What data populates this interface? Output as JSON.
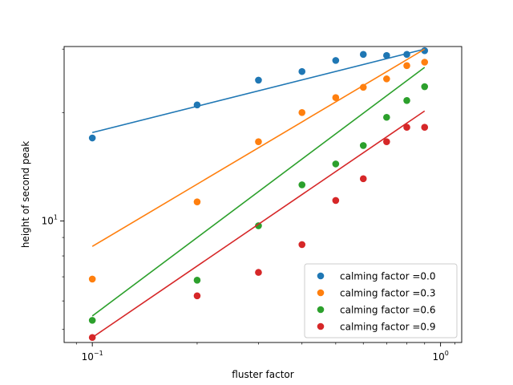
{
  "chart_data": {
    "type": "scatter",
    "xlabel": "fluster factor",
    "ylabel": "height of second peak",
    "xscale": "log",
    "yscale": "log",
    "xlim": [
      0.083,
      1.15
    ],
    "ylim": [
      4.6,
      30.5
    ],
    "x_ticks": [
      {
        "value": 0.1,
        "label": "10",
        "exp": "−1"
      },
      {
        "value": 1.0,
        "label": "10",
        "exp": "0"
      }
    ],
    "y_ticks": [
      {
        "value": 10,
        "label": "10",
        "exp": "1"
      }
    ],
    "grid": false,
    "legend_position": "lower right",
    "x": [
      0.1,
      0.2,
      0.3,
      0.4,
      0.5,
      0.6,
      0.7,
      0.8,
      0.9
    ],
    "series": [
      {
        "name": "calming factor =0.0",
        "color": "#1f77b4",
        "values": [
          17.0,
          21.0,
          24.6,
          26.0,
          27.9,
          29.0,
          28.8,
          29.0,
          29.7
        ],
        "fit": [
          17.6,
          30.0
        ]
      },
      {
        "name": "calming factor =0.3",
        "color": "#ff7f0e",
        "values": [
          6.9,
          11.3,
          16.6,
          20.0,
          22.0,
          23.5,
          24.8,
          27.0,
          27.6
        ],
        "fit": [
          8.5,
          30.0
        ]
      },
      {
        "name": "calming factor =0.6",
        "color": "#2ca02c",
        "values": [
          5.3,
          6.85,
          9.7,
          12.6,
          14.4,
          16.2,
          19.4,
          21.6,
          23.6
        ],
        "fit": [
          5.45,
          26.7
        ]
      },
      {
        "name": "calming factor =0.9",
        "color": "#d62728",
        "values": [
          4.75,
          6.2,
          7.2,
          8.6,
          11.4,
          13.1,
          16.6,
          18.2,
          18.2
        ],
        "fit": [
          4.75,
          20.2
        ]
      }
    ]
  }
}
